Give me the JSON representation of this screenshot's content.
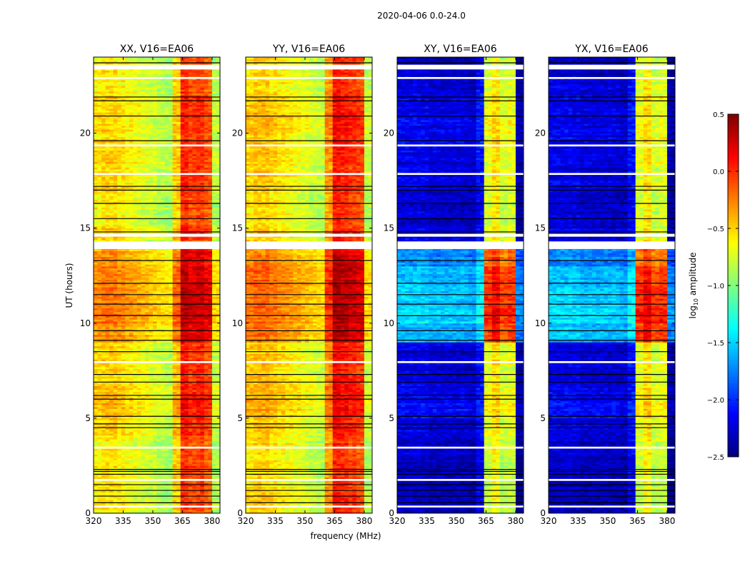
{
  "chart_data": {
    "type": "heatmap",
    "suptitle": "2020-04-06 0.0-24.0",
    "xlabel": "frequency (MHz)",
    "ylabel": "UT (hours)",
    "xlim": [
      320,
      384
    ],
    "ylim": [
      0,
      24
    ],
    "xticks": [
      320,
      335,
      350,
      365,
      380
    ],
    "yticks": [
      0,
      5,
      10,
      15,
      20
    ],
    "colorbar": {
      "label_base": "log",
      "label_sub": "10",
      "label_rest": " amplitude",
      "range": [
        -2.5,
        0.5
      ],
      "ticks": [
        "0.5",
        "0.0",
        "−0.5",
        "−1.0",
        "−1.5",
        "−2.0",
        "−2.5"
      ],
      "tick_values": [
        0.5,
        0.0,
        -0.5,
        -1.0,
        -1.5,
        -2.0,
        -2.5
      ],
      "colormap": "jet"
    },
    "channel_bins_mhz": [
      320,
      324,
      328,
      332,
      336,
      340,
      344,
      348,
      352,
      356,
      360,
      364,
      368,
      372,
      376,
      380
    ],
    "flagged_white_hours": [
      [
        13.9,
        14.3
      ],
      [
        14.55,
        14.7
      ],
      [
        23.35,
        23.6
      ],
      [
        22.85,
        22.95
      ],
      [
        3.4,
        3.5
      ],
      [
        7.9,
        8.0
      ],
      [
        19.3,
        19.4
      ],
      [
        17.8,
        17.9
      ],
      [
        1.7,
        1.8
      ],
      [
        0.3,
        0.4
      ]
    ],
    "black_line_hours": [
      0.55,
      0.9,
      1.2,
      1.5,
      2.05,
      2.2,
      2.3,
      4.5,
      4.7,
      5.1,
      6.0,
      6.2,
      6.9,
      7.3,
      8.5,
      9.1,
      9.6,
      10.4,
      11.0,
      11.5,
      12.1,
      13.3,
      14.8,
      15.5,
      16.3,
      17.0,
      17.2,
      19.6,
      20.9,
      21.7,
      21.9,
      23.7
    ],
    "panels": [
      {
        "title": "XX, V16=EA06",
        "freq_profile": [
          -0.55,
          -0.5,
          -0.5,
          -0.55,
          -0.6,
          -0.65,
          -0.7,
          -0.75,
          -0.8,
          -0.85,
          -0.45,
          0.05,
          -0.05,
          0.0,
          -0.1,
          -0.8
        ],
        "time_profile": [
          -0.05,
          -0.05,
          -0.05,
          -0.05,
          0.0,
          0.1,
          0.05,
          0.0,
          0.0,
          0.25,
          0.3,
          0.3,
          0.3,
          0.2,
          0.0,
          -0.05,
          -0.05,
          0.0,
          0.0,
          0.0,
          0.0,
          0.0,
          -0.05,
          -0.05
        ]
      },
      {
        "title": "YY, V16=EA06",
        "freq_profile": [
          -0.5,
          -0.45,
          -0.45,
          -0.5,
          -0.55,
          -0.6,
          -0.65,
          -0.7,
          -0.75,
          -0.8,
          -0.3,
          0.1,
          0.05,
          0.0,
          -0.05,
          -0.8
        ],
        "time_profile": [
          -0.05,
          -0.05,
          -0.05,
          -0.05,
          0.0,
          0.1,
          0.05,
          0.0,
          0.0,
          0.25,
          0.3,
          0.3,
          0.3,
          0.2,
          0.0,
          -0.05,
          -0.05,
          0.0,
          0.0,
          0.0,
          0.05,
          0.05,
          -0.05,
          -0.05
        ]
      },
      {
        "title": "XY, V16=EA06",
        "freq_profile": [
          -2.2,
          -2.2,
          -2.2,
          -2.2,
          -2.25,
          -2.25,
          -2.25,
          -2.25,
          -2.25,
          -2.3,
          -2.1,
          -0.7,
          -0.55,
          -0.75,
          -0.7,
          -2.4
        ],
        "time_profile": [
          -0.1,
          -0.1,
          -0.1,
          -0.05,
          0.0,
          0.1,
          0.05,
          0.0,
          0.0,
          0.65,
          0.75,
          0.7,
          0.65,
          0.5,
          0.0,
          -0.05,
          -0.05,
          0.0,
          0.0,
          0.05,
          0.05,
          0.05,
          0.0,
          -0.1
        ]
      },
      {
        "title": "YX, V16=EA06",
        "freq_profile": [
          -2.2,
          -2.2,
          -2.2,
          -2.2,
          -2.25,
          -2.25,
          -2.25,
          -2.25,
          -2.25,
          -2.3,
          -2.1,
          -0.7,
          -0.55,
          -0.75,
          -0.7,
          -2.4
        ],
        "time_profile": [
          -0.1,
          -0.1,
          -0.1,
          -0.05,
          0.0,
          0.1,
          0.05,
          0.0,
          0.0,
          0.65,
          0.75,
          0.7,
          0.65,
          0.5,
          0.0,
          -0.05,
          -0.05,
          0.0,
          0.0,
          0.05,
          0.05,
          0.05,
          0.0,
          -0.1
        ]
      }
    ]
  }
}
